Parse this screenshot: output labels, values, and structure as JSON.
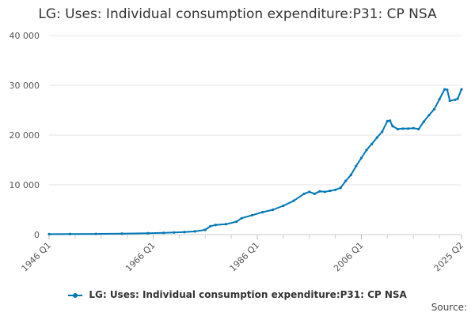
{
  "chart_data": {
    "type": "line",
    "title": "LG: Uses: Individual consumption expenditure:P31: CP NSA",
    "xlabel": "",
    "ylabel": "",
    "x_tick_labels": [
      "1946 Q1",
      "1966 Q1",
      "1986 Q1",
      "2006 Q1",
      "2025 Q2"
    ],
    "y_tick_labels": [
      "0",
      "10 000",
      "20 000",
      "30 000",
      "40 000"
    ],
    "ylim": [
      0,
      40000
    ],
    "xlim": [
      1946.0,
      2025.25
    ],
    "grid": true,
    "legend_position": "bottom",
    "series": [
      {
        "name": "LG: Uses: Individual consumption expenditure:P31: CP NSA",
        "color": "#0077b6",
        "points": [
          [
            1946.0,
            100
          ],
          [
            1950.0,
            120
          ],
          [
            1955.0,
            150
          ],
          [
            1960.0,
            200
          ],
          [
            1965.0,
            280
          ],
          [
            1968.0,
            350
          ],
          [
            1970.0,
            430
          ],
          [
            1972.0,
            520
          ],
          [
            1974.0,
            650
          ],
          [
            1976.0,
            950
          ],
          [
            1977.0,
            1700
          ],
          [
            1978.0,
            1950
          ],
          [
            1980.0,
            2100
          ],
          [
            1982.0,
            2600
          ],
          [
            1983.0,
            3300
          ],
          [
            1985.0,
            3900
          ],
          [
            1987.0,
            4500
          ],
          [
            1989.0,
            5000
          ],
          [
            1991.0,
            5800
          ],
          [
            1993.0,
            6800
          ],
          [
            1995.0,
            8200
          ],
          [
            1996.0,
            8600
          ],
          [
            1997.0,
            8200
          ],
          [
            1998.0,
            8700
          ],
          [
            1999.0,
            8600
          ],
          [
            2000.0,
            8800
          ],
          [
            2001.0,
            9000
          ],
          [
            2002.0,
            9400
          ],
          [
            2003.0,
            10800
          ],
          [
            2004.0,
            12000
          ],
          [
            2005.0,
            13800
          ],
          [
            2006.0,
            15400
          ],
          [
            2007.0,
            17000
          ],
          [
            2008.0,
            18200
          ],
          [
            2009.0,
            19500
          ],
          [
            2010.0,
            20700
          ],
          [
            2011.0,
            22800
          ],
          [
            2011.5,
            22900
          ],
          [
            2012.0,
            21800
          ],
          [
            2013.0,
            21200
          ],
          [
            2014.0,
            21300
          ],
          [
            2015.0,
            21300
          ],
          [
            2016.0,
            21400
          ],
          [
            2017.0,
            21200
          ],
          [
            2018.0,
            22700
          ],
          [
            2019.0,
            24000
          ],
          [
            2020.0,
            25200
          ],
          [
            2021.0,
            27200
          ],
          [
            2022.0,
            29200
          ],
          [
            2022.5,
            29100
          ],
          [
            2023.0,
            26900
          ],
          [
            2024.0,
            27100
          ],
          [
            2024.5,
            27300
          ],
          [
            2025.25,
            29200
          ]
        ]
      }
    ]
  },
  "legend": {
    "label": "LG: Uses: Individual consumption expenditure:P31: CP NSA"
  },
  "footer": {
    "source_label": "Source:"
  }
}
